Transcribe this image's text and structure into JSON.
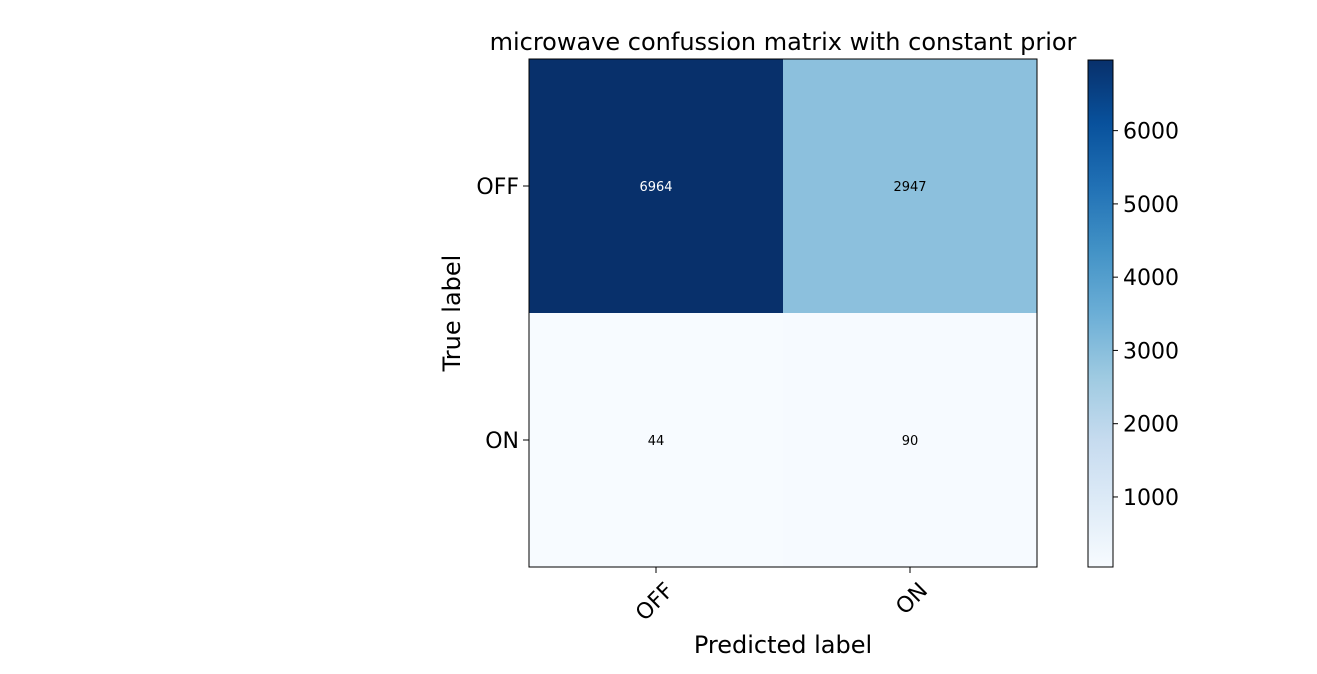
{
  "chart_data": {
    "type": "heatmap",
    "title": "microwave confussion matrix with constant prior",
    "xlabel": "Predicted label",
    "ylabel": "True label",
    "x_categories": [
      "OFF",
      "ON"
    ],
    "y_categories": [
      "OFF",
      "ON"
    ],
    "values": [
      [
        6964,
        2947
      ],
      [
        44,
        90
      ]
    ],
    "colormap": "Blues",
    "colorbar": {
      "min": 44,
      "max": 6964,
      "ticks": [
        1000,
        2000,
        3000,
        4000,
        5000,
        6000
      ],
      "tick_labels": [
        "1000",
        "2000",
        "3000",
        "4000",
        "5000",
        "6000"
      ]
    },
    "grid": false,
    "text_colors": {
      "on_dark": "#ffffff",
      "on_light": "#000000"
    }
  }
}
